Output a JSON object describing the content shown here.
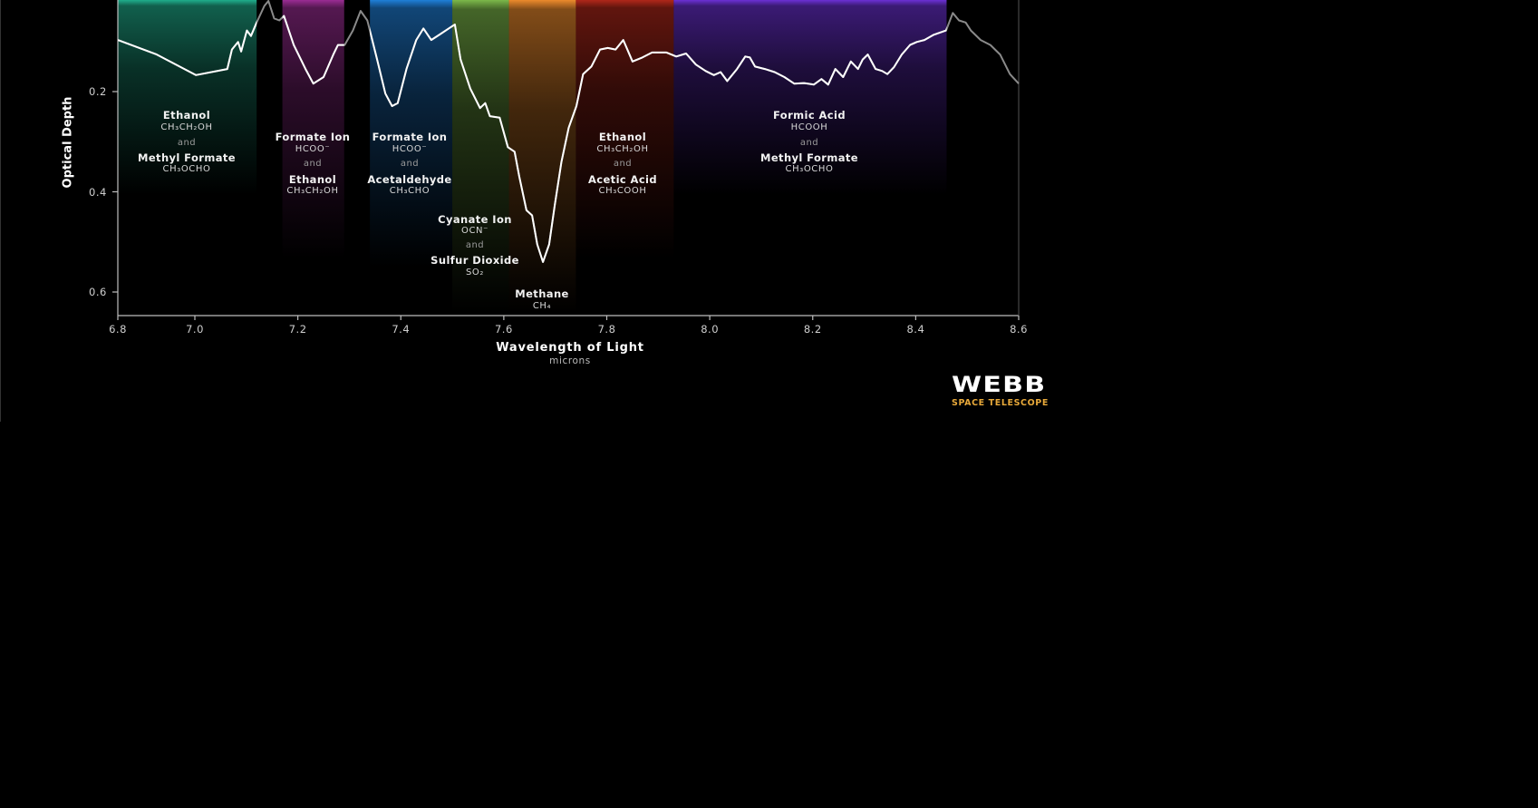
{
  "chart_data": {
    "type": "line",
    "xlabel": "Wavelength of Light",
    "xunit": "microns",
    "ylabel": "Optical Depth",
    "xlim": [
      6.8,
      8.6
    ],
    "ylim": [
      0.0,
      0.65
    ],
    "y_inverted": true,
    "grid": false,
    "xticks": [
      "6.8",
      "7.0",
      "7.2",
      "7.4",
      "7.6",
      "7.8",
      "8.0",
      "8.2",
      "8.4",
      "8.6"
    ],
    "yticks": [
      "0.2",
      "0.4",
      "0.6"
    ],
    "series": [
      {
        "x": [
          6.8,
          6.901,
          7.002,
          7.063,
          7.072,
          7.084,
          7.09,
          7.101,
          7.109,
          7.12,
          7.135,
          7.143,
          7.154,
          7.164,
          7.173,
          7.192,
          7.215,
          7.23,
          7.25,
          7.269,
          7.278,
          7.291,
          7.307,
          7.322,
          7.335,
          7.354,
          7.37,
          7.383,
          7.394,
          7.411,
          7.43,
          7.444,
          7.459,
          7.474,
          7.493,
          7.505,
          7.516,
          7.535,
          7.554,
          7.564,
          7.573,
          7.592,
          7.608,
          7.621,
          7.63,
          7.644,
          7.655,
          7.665,
          7.676,
          7.688,
          7.699,
          7.712,
          7.726,
          7.741,
          7.754,
          7.77,
          7.787,
          7.802,
          7.817,
          7.832,
          7.85,
          7.869,
          7.888,
          7.916,
          7.935,
          7.954,
          7.973,
          7.992,
          8.008,
          8.021,
          8.034,
          8.053,
          8.069,
          8.078,
          8.088,
          8.107,
          8.126,
          8.145,
          8.164,
          8.183,
          8.202,
          8.217,
          8.23,
          8.244,
          8.259,
          8.274,
          8.288,
          8.297,
          8.307,
          8.322,
          8.335,
          8.345,
          8.358,
          8.373,
          8.389,
          8.402,
          8.417,
          8.434,
          8.459,
          8.472,
          8.484,
          8.497,
          8.507,
          8.526,
          8.545,
          8.564,
          8.583,
          8.6
        ],
        "y": [
          0.097,
          0.126,
          0.167,
          0.155,
          0.116,
          0.101,
          0.12,
          0.078,
          0.089,
          0.062,
          0.029,
          0.019,
          0.054,
          0.058,
          0.049,
          0.107,
          0.155,
          0.184,
          0.171,
          0.126,
          0.107,
          0.107,
          0.078,
          0.039,
          0.058,
          0.136,
          0.204,
          0.229,
          0.223,
          0.155,
          0.097,
          0.074,
          0.097,
          0.087,
          0.074,
          0.066,
          0.136,
          0.194,
          0.233,
          0.223,
          0.249,
          0.252,
          0.311,
          0.32,
          0.369,
          0.437,
          0.447,
          0.505,
          0.54,
          0.505,
          0.427,
          0.34,
          0.272,
          0.229,
          0.165,
          0.15,
          0.116,
          0.113,
          0.116,
          0.097,
          0.14,
          0.132,
          0.122,
          0.122,
          0.13,
          0.124,
          0.146,
          0.159,
          0.167,
          0.161,
          0.179,
          0.155,
          0.13,
          0.132,
          0.15,
          0.155,
          0.161,
          0.171,
          0.184,
          0.183,
          0.186,
          0.175,
          0.186,
          0.155,
          0.171,
          0.14,
          0.155,
          0.136,
          0.126,
          0.155,
          0.159,
          0.165,
          0.151,
          0.126,
          0.107,
          0.101,
          0.097,
          0.087,
          0.078,
          0.043,
          0.058,
          0.062,
          0.078,
          0.097,
          0.107,
          0.126,
          0.165,
          0.184
        ]
      }
    ],
    "bands": [
      {
        "range": [
          6.8,
          7.12
        ],
        "color": "#1fae8c",
        "labels": [
          {
            "name": "Ethanol",
            "formula": "CH₃CH₂OH"
          },
          {
            "name": "Methyl Formate",
            "formula": "CH₃OCHO"
          }
        ]
      },
      {
        "range": [
          7.17,
          7.29
        ],
        "color": "#9a2c93",
        "labels": [
          {
            "name": "Formate Ion",
            "formula": "HCOO⁻"
          },
          {
            "name": "Ethanol",
            "formula": "CH₃CH₂OH"
          }
        ]
      },
      {
        "range": [
          7.34,
          7.5
        ],
        "color": "#1f7fd8",
        "labels": [
          {
            "name": "Formate Ion",
            "formula": "HCOO⁻"
          },
          {
            "name": "Acetaldehyde",
            "formula": "CH₃CHO"
          }
        ]
      },
      {
        "range": [
          7.5,
          7.61
        ],
        "color": "#7cb84a",
        "labels": [
          {
            "name": "Cyanate Ion",
            "formula": "OCN⁻"
          },
          {
            "name": "Sulfur Dioxide",
            "formula": "SO₂"
          }
        ]
      },
      {
        "range": [
          7.61,
          7.74
        ],
        "color": "#ec8a2c",
        "labels": [
          {
            "name": "Methane",
            "formula": "CH₄"
          }
        ]
      },
      {
        "range": [
          7.74,
          7.93
        ],
        "color": "#b0271a",
        "labels": [
          {
            "name": "Ethanol",
            "formula": "CH₃CH₂OH"
          },
          {
            "name": "Acetic Acid",
            "formula": "CH₃COOH"
          }
        ]
      },
      {
        "range": [
          7.93,
          8.46
        ],
        "color": "#6b30d4",
        "labels": [
          {
            "name": "Formic Acid",
            "formula": "HCOOH"
          },
          {
            "name": "Methyl Formate",
            "formula": "CH₃OCHO"
          }
        ]
      }
    ],
    "conjunction": "and",
    "line_color": "#ffffff",
    "out_of_band_line_color": "#8a8a8a"
  },
  "logo": {
    "wordmark": "WEBB",
    "subtitle": "SPACE TELESCOPE",
    "accent": "#e8a93a"
  }
}
